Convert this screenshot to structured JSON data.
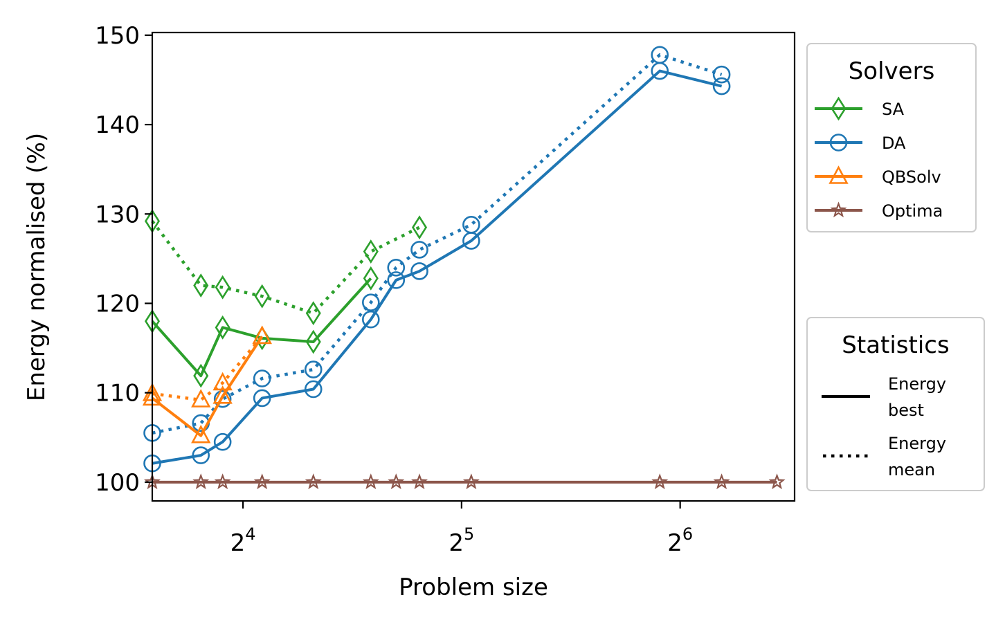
{
  "chart_data": {
    "type": "line",
    "title": "",
    "xlabel": "Problem size",
    "ylabel": "Energy normalised (%)",
    "xscale": "log2",
    "xlim": [
      12,
      92
    ],
    "ylim": [
      97.9,
      150.3
    ],
    "grid": false,
    "xticks": [
      16,
      32,
      64
    ],
    "xtick_labels": [
      {
        "base": "2",
        "exp": "4"
      },
      {
        "base": "2",
        "exp": "5"
      },
      {
        "base": "2",
        "exp": "6"
      }
    ],
    "yticks": [
      100,
      110,
      120,
      130,
      140,
      150
    ],
    "ytick_labels": [
      "100",
      "110",
      "120",
      "130",
      "140",
      "150"
    ],
    "series": [
      {
        "name": "SA",
        "color": "#2ca02c",
        "marker": "diamond",
        "best": {
          "x": [
            12,
            14,
            15,
            17,
            20,
            24
          ],
          "y": [
            118.0,
            111.9,
            117.3,
            116.1,
            115.7,
            122.8
          ]
        },
        "mean": {
          "x": [
            12,
            14,
            15,
            17,
            20,
            24,
            28
          ],
          "y": [
            129.2,
            122.0,
            121.8,
            120.8,
            118.9,
            125.8,
            128.5
          ]
        }
      },
      {
        "name": "DA",
        "color": "#1f77b4",
        "marker": "circle",
        "best": {
          "x": [
            12,
            14,
            15,
            17,
            20,
            24,
            26,
            28,
            33,
            60,
            73
          ],
          "y": [
            102.1,
            103.0,
            104.5,
            109.4,
            110.4,
            118.2,
            122.6,
            123.6,
            127.0,
            146.0,
            144.3
          ]
        },
        "mean": {
          "x": [
            12,
            14,
            15,
            17,
            20,
            24,
            26,
            28,
            33,
            60,
            73
          ],
          "y": [
            105.5,
            106.6,
            109.3,
            111.6,
            112.6,
            120.1,
            124.0,
            126.0,
            128.8,
            147.8,
            145.6
          ]
        }
      },
      {
        "name": "QBSolv",
        "color": "#ff7f0e",
        "marker": "triangle",
        "best": {
          "x": [
            12,
            14,
            15,
            17
          ],
          "y": [
            109.4,
            105.2,
            109.6,
            116.3
          ]
        },
        "mean": {
          "x": [
            12,
            14,
            15,
            17
          ],
          "y": [
            109.9,
            109.2,
            111.1,
            116.3
          ]
        }
      },
      {
        "name": "Optima",
        "color": "#8c564b",
        "marker": "star",
        "best": {
          "x": [
            12,
            14,
            15,
            17,
            20,
            24,
            26,
            28,
            33,
            60,
            73,
            87
          ],
          "y": [
            100,
            100,
            100,
            100,
            100,
            100,
            100,
            100,
            100,
            100,
            100,
            100
          ]
        }
      }
    ],
    "legends": {
      "solvers": {
        "title": "Solvers",
        "placement": "upper right, outside plot",
        "entries": [
          "SA",
          "DA",
          "QBSolv",
          "Optima"
        ]
      },
      "statistics": {
        "title": "Statistics",
        "placement": "lower right, outside plot",
        "entries": [
          {
            "style": "solid",
            "line1": "Energy",
            "line2": "best"
          },
          {
            "style": "dotted",
            "line1": "Energy",
            "line2": "mean"
          }
        ]
      }
    }
  }
}
